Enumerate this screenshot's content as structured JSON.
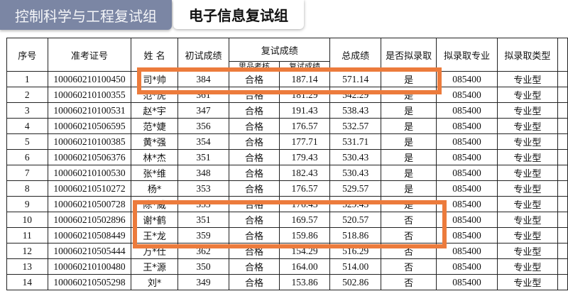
{
  "tabs": [
    {
      "label": "控制科学与工程复试组",
      "active": true
    },
    {
      "label": "电子信息复试组",
      "active": false
    }
  ],
  "table": {
    "headers": {
      "seq": "序号",
      "exam_id": "准考证号",
      "name": "姓 名",
      "initial_score": "初试成绩",
      "retest_group": "复试成绩",
      "retest_sub1": "思品考核",
      "retest_sub2": "复试成绩",
      "total": "总成绩",
      "admit": "是否拟录取",
      "major": "拟录取专业",
      "type": "拟录取类型"
    },
    "rows": [
      {
        "seq": "1",
        "exam_id": "100060210100450",
        "name": "司*帅",
        "initial": "384",
        "ideology": "合格",
        "retest": "187.14",
        "total": "571.14",
        "admit": "是",
        "major": "085400",
        "type": "专业型"
      },
      {
        "seq": "2",
        "exam_id": "100060210100355",
        "name": "范*虎",
        "initial": "361",
        "ideology": "合格",
        "retest": "181.29",
        "total": "542.29",
        "admit": "是",
        "major": "085400",
        "type": "专业型"
      },
      {
        "seq": "3",
        "exam_id": "100060210100531",
        "name": "赵*宇",
        "initial": "347",
        "ideology": "合格",
        "retest": "191.43",
        "total": "538.43",
        "admit": "是",
        "major": "085400",
        "type": "专业型"
      },
      {
        "seq": "4",
        "exam_id": "100060210506595",
        "name": "范*婕",
        "initial": "356",
        "ideology": "合格",
        "retest": "176.57",
        "total": "532.57",
        "admit": "是",
        "major": "085400",
        "type": "专业型"
      },
      {
        "seq": "5",
        "exam_id": "100060210100385",
        "name": "黄*强",
        "initial": "354",
        "ideology": "合格",
        "retest": "177.71",
        "total": "531.71",
        "admit": "是",
        "major": "085400",
        "type": "专业型"
      },
      {
        "seq": "6",
        "exam_id": "100060210506376",
        "name": "林*杰",
        "initial": "351",
        "ideology": "合格",
        "retest": "179.43",
        "total": "530.43",
        "admit": "是",
        "major": "085400",
        "type": "专业型"
      },
      {
        "seq": "7",
        "exam_id": "100060210100530",
        "name": "张*维",
        "initial": "348",
        "ideology": "合格",
        "retest": "182.43",
        "total": "530.43",
        "admit": "是",
        "major": "085400",
        "type": "专业型"
      },
      {
        "seq": "8",
        "exam_id": "100060210510272",
        "name": "杨*",
        "initial": "353",
        "ideology": "合格",
        "retest": "176.57",
        "total": "529.57",
        "admit": "是",
        "major": "085400",
        "type": "专业型"
      },
      {
        "seq": "9",
        "exam_id": "100060210500728",
        "name": "陈*威",
        "initial": "353",
        "ideology": "合格",
        "retest": "176.43",
        "total": "529.43",
        "admit": "是",
        "major": "085400",
        "type": "专业型"
      },
      {
        "seq": "10",
        "exam_id": "100060210502896",
        "name": "谢*鹤",
        "initial": "351",
        "ideology": "合格",
        "retest": "169.57",
        "total": "520.57",
        "admit": "否",
        "major": "085400",
        "type": "专业型"
      },
      {
        "seq": "11",
        "exam_id": "100060210508449",
        "name": "王*龙",
        "initial": "359",
        "ideology": "合格",
        "retest": "159.86",
        "total": "518.86",
        "admit": "否",
        "major": "085400",
        "type": "专业型"
      },
      {
        "seq": "12",
        "exam_id": "100060210505444",
        "name": "万*仕",
        "initial": "362",
        "ideology": "合格",
        "retest": "154.29",
        "total": "516.29",
        "admit": "否",
        "major": "085400",
        "type": "专业型"
      },
      {
        "seq": "13",
        "exam_id": "100060210100480",
        "name": "王*源",
        "initial": "350",
        "ideology": "合格",
        "retest": "164.00",
        "total": "514.00",
        "admit": "否",
        "major": "085400",
        "type": "专业型"
      },
      {
        "seq": "14",
        "exam_id": "100060210505298",
        "name": "刘*",
        "initial": "349",
        "ideology": "合格",
        "retest": "153.86",
        "total": "502.86",
        "admit": "否",
        "major": "085400",
        "type": "专业型"
      }
    ]
  },
  "highlight_color": "#ec7b3c"
}
